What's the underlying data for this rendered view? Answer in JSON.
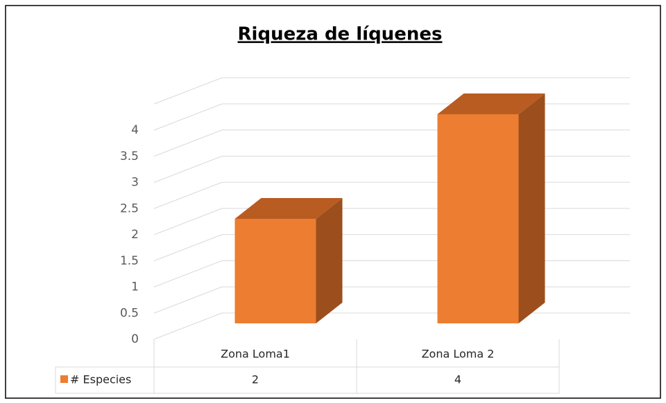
{
  "chart_data": {
    "type": "bar",
    "title": "Riqueza de líquenes",
    "categories": [
      "Zona Loma1",
      "Zona Loma 2"
    ],
    "series": [
      {
        "name": "# Especies",
        "color": "#ed7d31",
        "values": [
          2,
          4
        ]
      }
    ],
    "ylim": [
      0,
      4.5
    ],
    "yticks": [
      0,
      0.5,
      1,
      1.5,
      2,
      2.5,
      3,
      3.5,
      4
    ],
    "grid": true
  }
}
